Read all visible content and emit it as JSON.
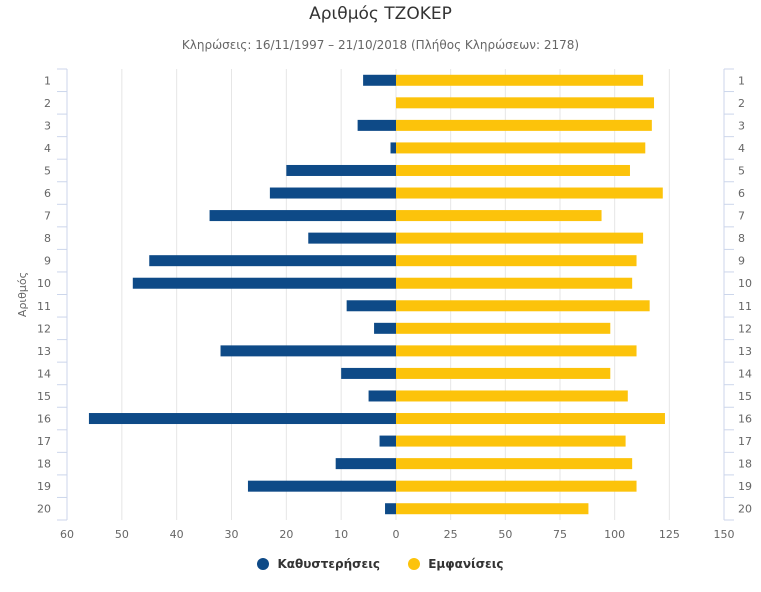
{
  "chart_data": {
    "type": "bar",
    "orientation": "horizontal",
    "title": "Αριθμός ΤΖΟΚΕΡ",
    "subtitle": "Κληρώσεις: 16/11/1997 – 21/10/2018 (Πλήθος Κληρώσεων: 2178)",
    "ylabel": "Αριθμός",
    "categories": [
      "1",
      "2",
      "3",
      "4",
      "5",
      "6",
      "7",
      "8",
      "9",
      "10",
      "11",
      "12",
      "13",
      "14",
      "15",
      "16",
      "17",
      "18",
      "19",
      "20"
    ],
    "series": [
      {
        "name": "Καθυστερήσεις",
        "color": "#0e4a87",
        "axis": "left",
        "values": [
          6,
          0,
          7,
          1,
          20,
          23,
          34,
          16,
          45,
          48,
          9,
          4,
          32,
          10,
          5,
          56,
          3,
          11,
          27,
          2
        ]
      },
      {
        "name": "Εμφανίσεις",
        "color": "#fcc30b",
        "axis": "right",
        "values": [
          113,
          118,
          117,
          114,
          107,
          122,
          94,
          113,
          110,
          108,
          116,
          98,
          110,
          98,
          106,
          123,
          105,
          108,
          110,
          88
        ]
      }
    ],
    "x_left_ticks": [
      "60",
      "50",
      "40",
      "30",
      "20",
      "10",
      "0"
    ],
    "x_right_ticks": [
      "25",
      "50",
      "75",
      "100",
      "125",
      "150"
    ],
    "x_left_range": [
      0,
      60
    ],
    "x_right_range": [
      0,
      150
    ]
  },
  "legend": {
    "delays_label": "Καθυστερήσεις",
    "appearances_label": "Εμφανίσεις"
  }
}
